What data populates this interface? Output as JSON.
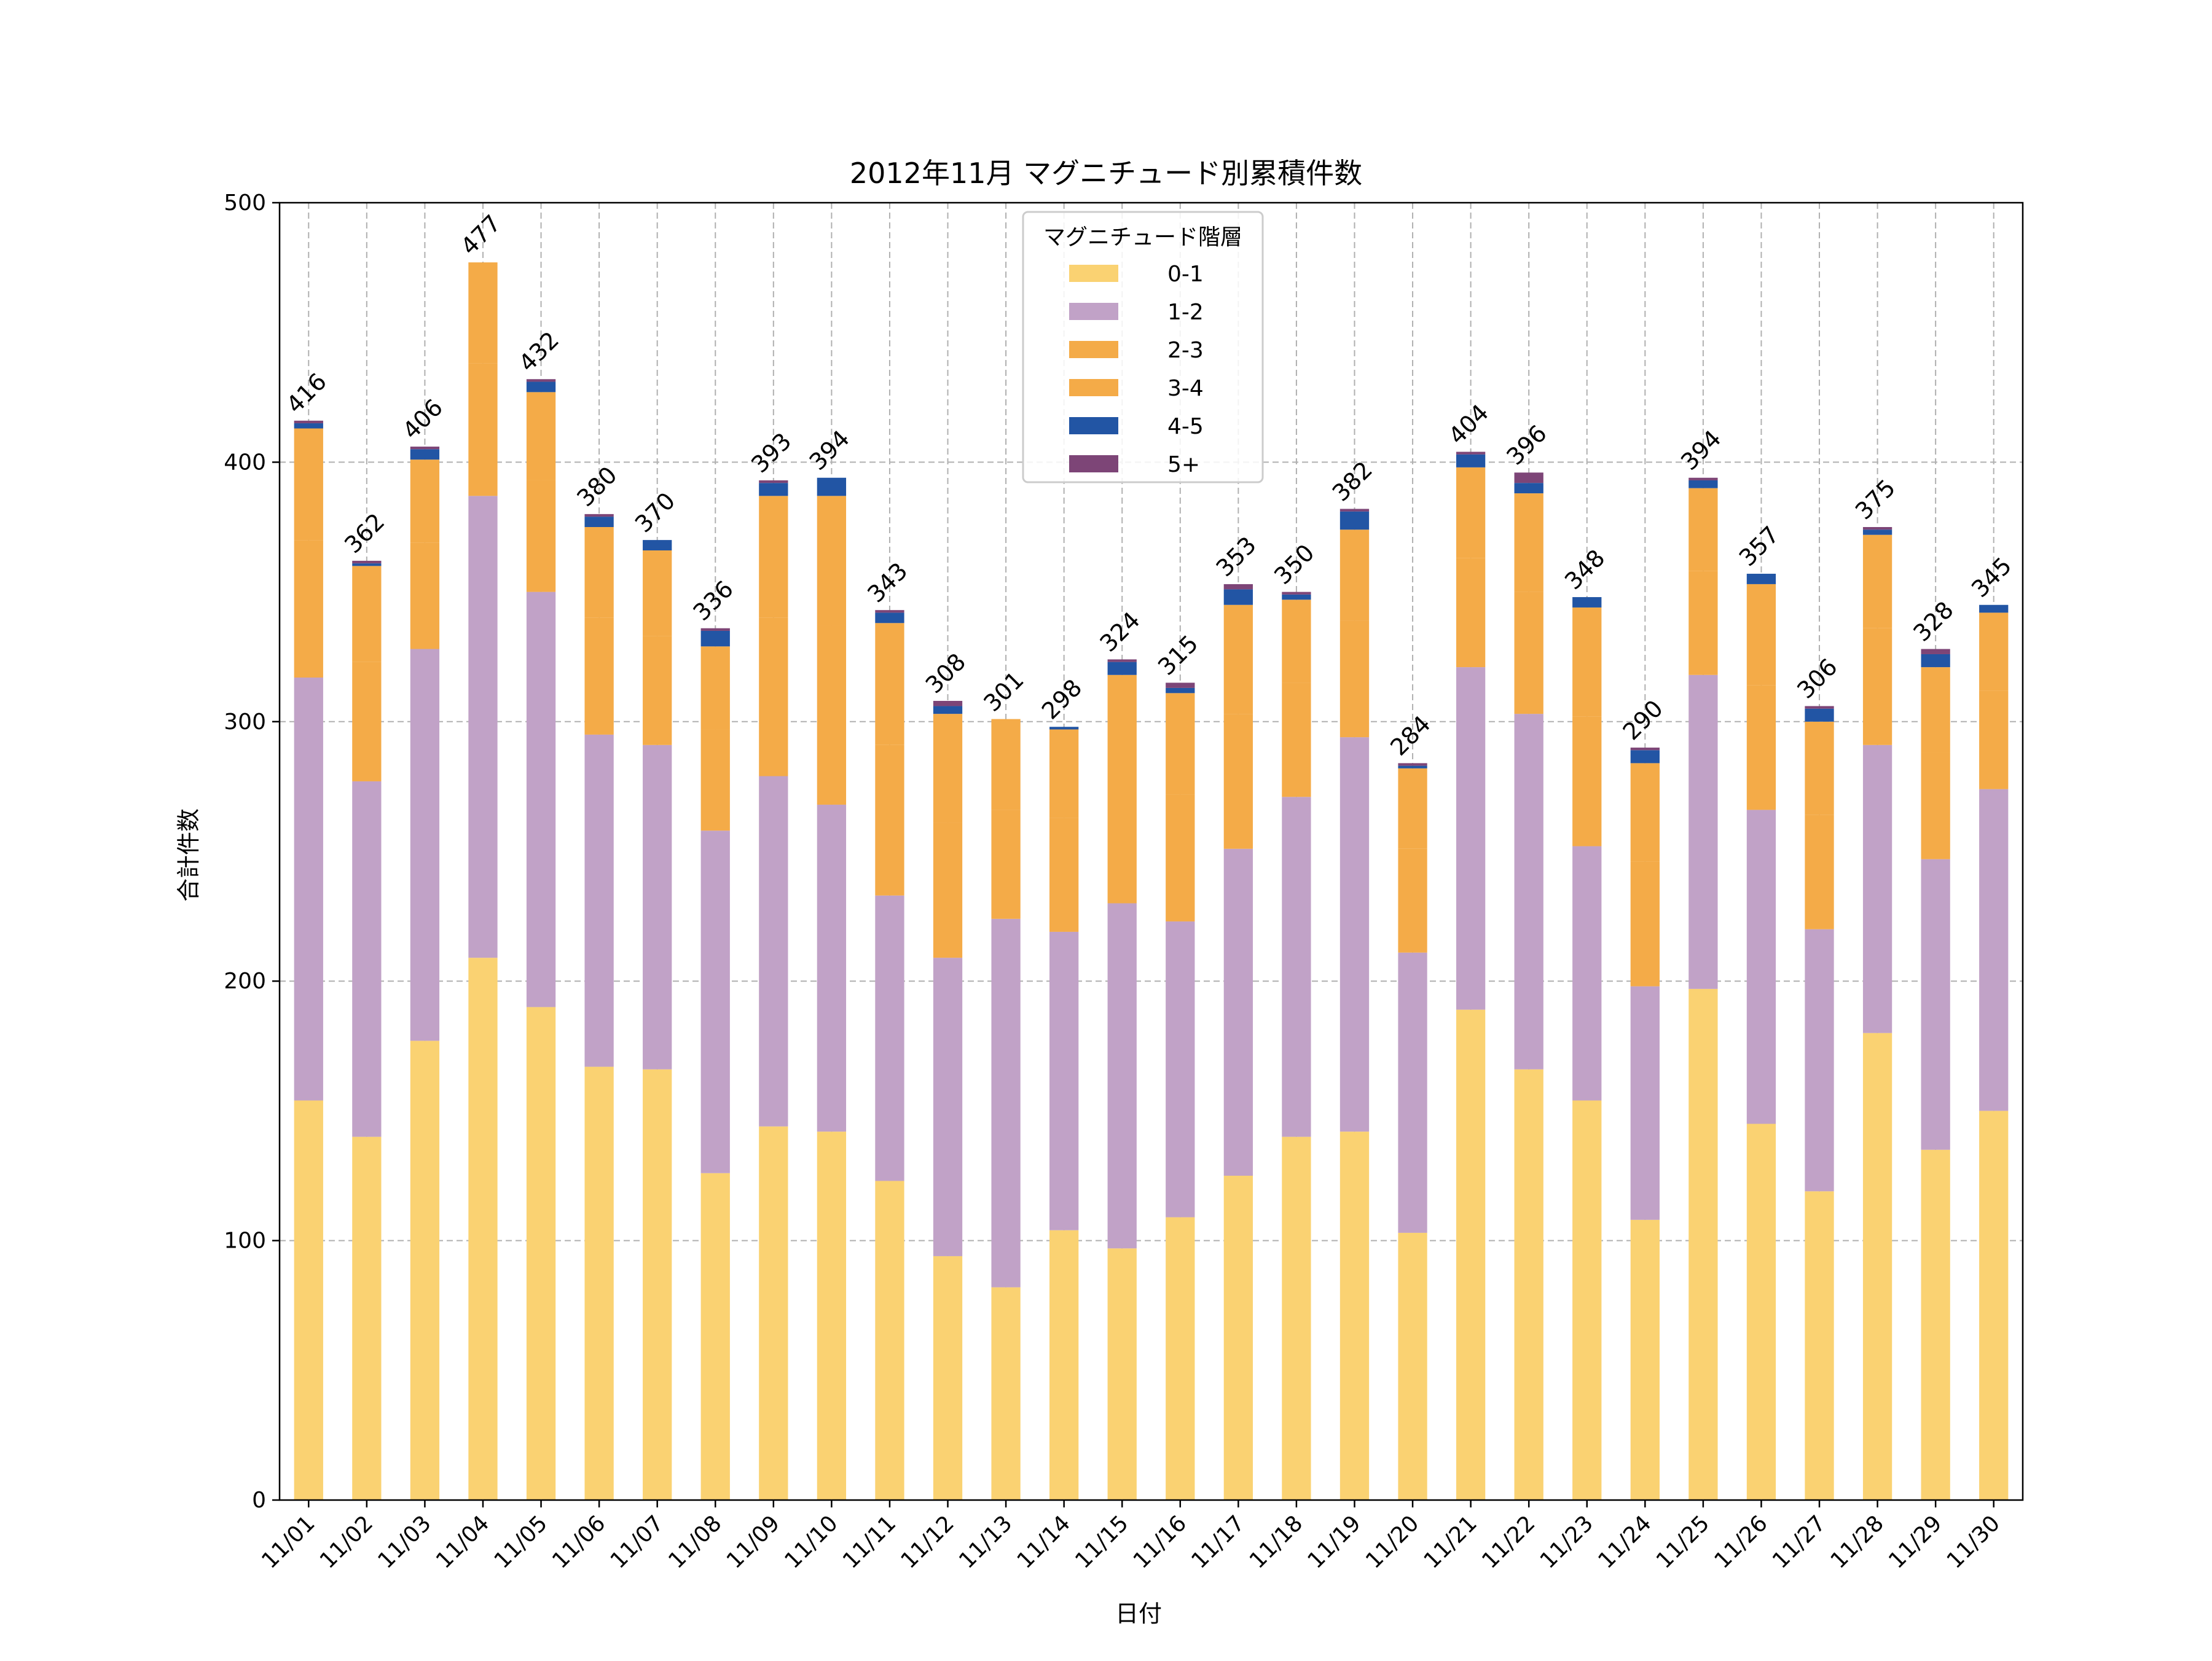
{
  "chart_data": {
    "type": "bar",
    "stacked": true,
    "title": "2012年11月 マグニチュード別累積件数",
    "xlabel": "日付",
    "ylabel": "合計件数",
    "ylim": [
      0,
      500
    ],
    "yticks": [
      "0",
      "100",
      "200",
      "300",
      "400",
      "500"
    ],
    "ytick_values": [
      0,
      100,
      200,
      300,
      400,
      500
    ],
    "grid": true,
    "legend_title": "マグニチュード階層",
    "legend_position": "top-center",
    "categories": [
      "11/01",
      "11/02",
      "11/03",
      "11/04",
      "11/05",
      "11/06",
      "11/07",
      "11/08",
      "11/09",
      "11/10",
      "11/11",
      "11/12",
      "11/13",
      "11/14",
      "11/15",
      "11/16",
      "11/17",
      "11/18",
      "11/19",
      "11/20",
      "11/21",
      "11/22",
      "11/23",
      "11/24",
      "11/25",
      "11/26",
      "11/27",
      "11/28",
      "11/29",
      "11/30"
    ],
    "series": [
      {
        "name": "0-1",
        "color": "#FAD272",
        "values": [
          154,
          140,
          177,
          209,
          190,
          167,
          166,
          126,
          144,
          142,
          123,
          94,
          82,
          104,
          97,
          109,
          125,
          140,
          142,
          103,
          189,
          166,
          154,
          108,
          197,
          145,
          119,
          180,
          135,
          150
        ]
      },
      {
        "name": "1-2",
        "color": "#C1A2C7",
        "values": [
          163,
          137,
          151,
          178,
          160,
          128,
          125,
          132,
          135,
          126,
          110,
          115,
          142,
          115,
          133,
          114,
          126,
          131,
          152,
          108,
          132,
          137,
          98,
          90,
          121,
          121,
          101,
          111,
          112,
          124
        ]
      },
      {
        "name": "2-3",
        "color": "#F4AB48",
        "values": [
          53,
          46,
          41,
          51,
          43,
          45,
          42,
          39,
          61,
          69,
          58,
          52,
          42,
          44,
          49,
          49,
          52,
          44,
          45,
          40,
          42,
          47,
          50,
          48,
          40,
          48,
          44,
          45,
          41,
          38
        ]
      },
      {
        "name": "3-4",
        "color": "#F4AB48",
        "values": [
          43,
          37,
          32,
          39,
          34,
          35,
          33,
          32,
          47,
          50,
          47,
          42,
          35,
          34,
          39,
          39,
          42,
          32,
          35,
          31,
          35,
          38,
          42,
          38,
          32,
          39,
          36,
          36,
          33,
          30
        ]
      },
      {
        "name": "4-5",
        "color": "#2255A4",
        "values": [
          2,
          1,
          4,
          0,
          4,
          4,
          4,
          6,
          5,
          7,
          4,
          3,
          0,
          1,
          5,
          2,
          6,
          2,
          7,
          1,
          5,
          4,
          4,
          5,
          3,
          4,
          5,
          2,
          5,
          3
        ]
      },
      {
        "name": "5+",
        "color": "#7D4577",
        "values": [
          1,
          1,
          1,
          0,
          1,
          1,
          0,
          1,
          1,
          0,
          1,
          2,
          0,
          0,
          1,
          2,
          2,
          1,
          1,
          1,
          1,
          4,
          0,
          1,
          1,
          0,
          1,
          1,
          2,
          0
        ]
      }
    ],
    "totals": [
      416,
      362,
      406,
      477,
      432,
      380,
      370,
      336,
      393,
      394,
      343,
      308,
      301,
      298,
      324,
      315,
      353,
      350,
      382,
      284,
      404,
      396,
      348,
      290,
      394,
      357,
      306,
      375,
      328,
      345
    ]
  }
}
